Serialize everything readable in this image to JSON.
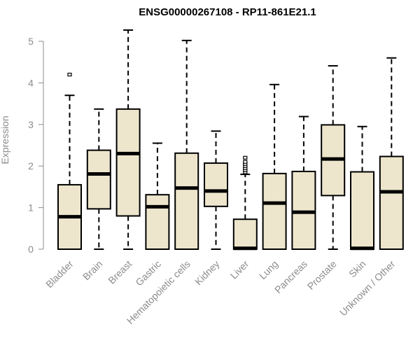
{
  "chart_data": {
    "type": "boxplot",
    "title": "ENSG00000267108 - RP11-861E21.1",
    "ylabel": "Expression",
    "ylim": [
      0,
      5
    ],
    "yticks": [
      "0",
      "1",
      "2",
      "3",
      "4",
      "5"
    ],
    "colors": {
      "box_fill": "#ede6cd",
      "stroke": "#000000",
      "axis": "#8c8c8c"
    },
    "categories": [
      "Bladder",
      "Brain",
      "Breast",
      "Gastric",
      "Hematopoietic cells",
      "Kidney",
      "Liver",
      "Lung",
      "Pancreas",
      "Prostate",
      "Skin",
      "Unknown / Other"
    ],
    "boxes": [
      {
        "category": "Bladder",
        "whisker_low": 0,
        "q1": 0,
        "median": 0.78,
        "q3": 1.55,
        "whisker_high": 3.7,
        "outliers": [
          4.2
        ]
      },
      {
        "category": "Brain",
        "whisker_low": 0,
        "q1": 0.97,
        "median": 1.81,
        "q3": 2.38,
        "whisker_high": 3.37,
        "outliers": []
      },
      {
        "category": "Breast",
        "whisker_low": 0,
        "q1": 0.8,
        "median": 2.3,
        "q3": 3.37,
        "whisker_high": 5.27,
        "outliers": []
      },
      {
        "category": "Gastric",
        "whisker_low": 0,
        "q1": 0,
        "median": 1.02,
        "q3": 1.31,
        "whisker_high": 2.55,
        "outliers": []
      },
      {
        "category": "Hematopoietic cells",
        "whisker_low": 0,
        "q1": 0,
        "median": 1.47,
        "q3": 2.31,
        "whisker_high": 5.02,
        "outliers": []
      },
      {
        "category": "Kidney",
        "whisker_low": 0,
        "q1": 1.03,
        "median": 1.4,
        "q3": 2.07,
        "whisker_high": 2.84,
        "outliers": []
      },
      {
        "category": "Liver",
        "whisker_low": 0,
        "q1": 0,
        "median": 0.02,
        "q3": 0.72,
        "whisker_high": 1.8,
        "outliers": [
          1.85,
          1.9,
          1.95,
          2.0,
          2.05,
          2.1,
          2.2
        ]
      },
      {
        "category": "Lung",
        "whisker_low": 0,
        "q1": 0,
        "median": 1.11,
        "q3": 1.82,
        "whisker_high": 3.96,
        "outliers": []
      },
      {
        "category": "Pancreas",
        "whisker_low": 0,
        "q1": 0,
        "median": 0.89,
        "q3": 1.87,
        "whisker_high": 3.19,
        "outliers": []
      },
      {
        "category": "Prostate",
        "whisker_low": 0,
        "q1": 1.29,
        "median": 2.17,
        "q3": 2.99,
        "whisker_high": 4.41,
        "outliers": []
      },
      {
        "category": "Skin",
        "whisker_low": 0,
        "q1": 0,
        "median": 0.02,
        "q3": 1.86,
        "whisker_high": 2.95,
        "outliers": []
      },
      {
        "category": "Unknown / Other",
        "whisker_low": 0,
        "q1": 0,
        "median": 1.38,
        "q3": 2.23,
        "whisker_high": 4.6,
        "outliers": []
      }
    ]
  }
}
